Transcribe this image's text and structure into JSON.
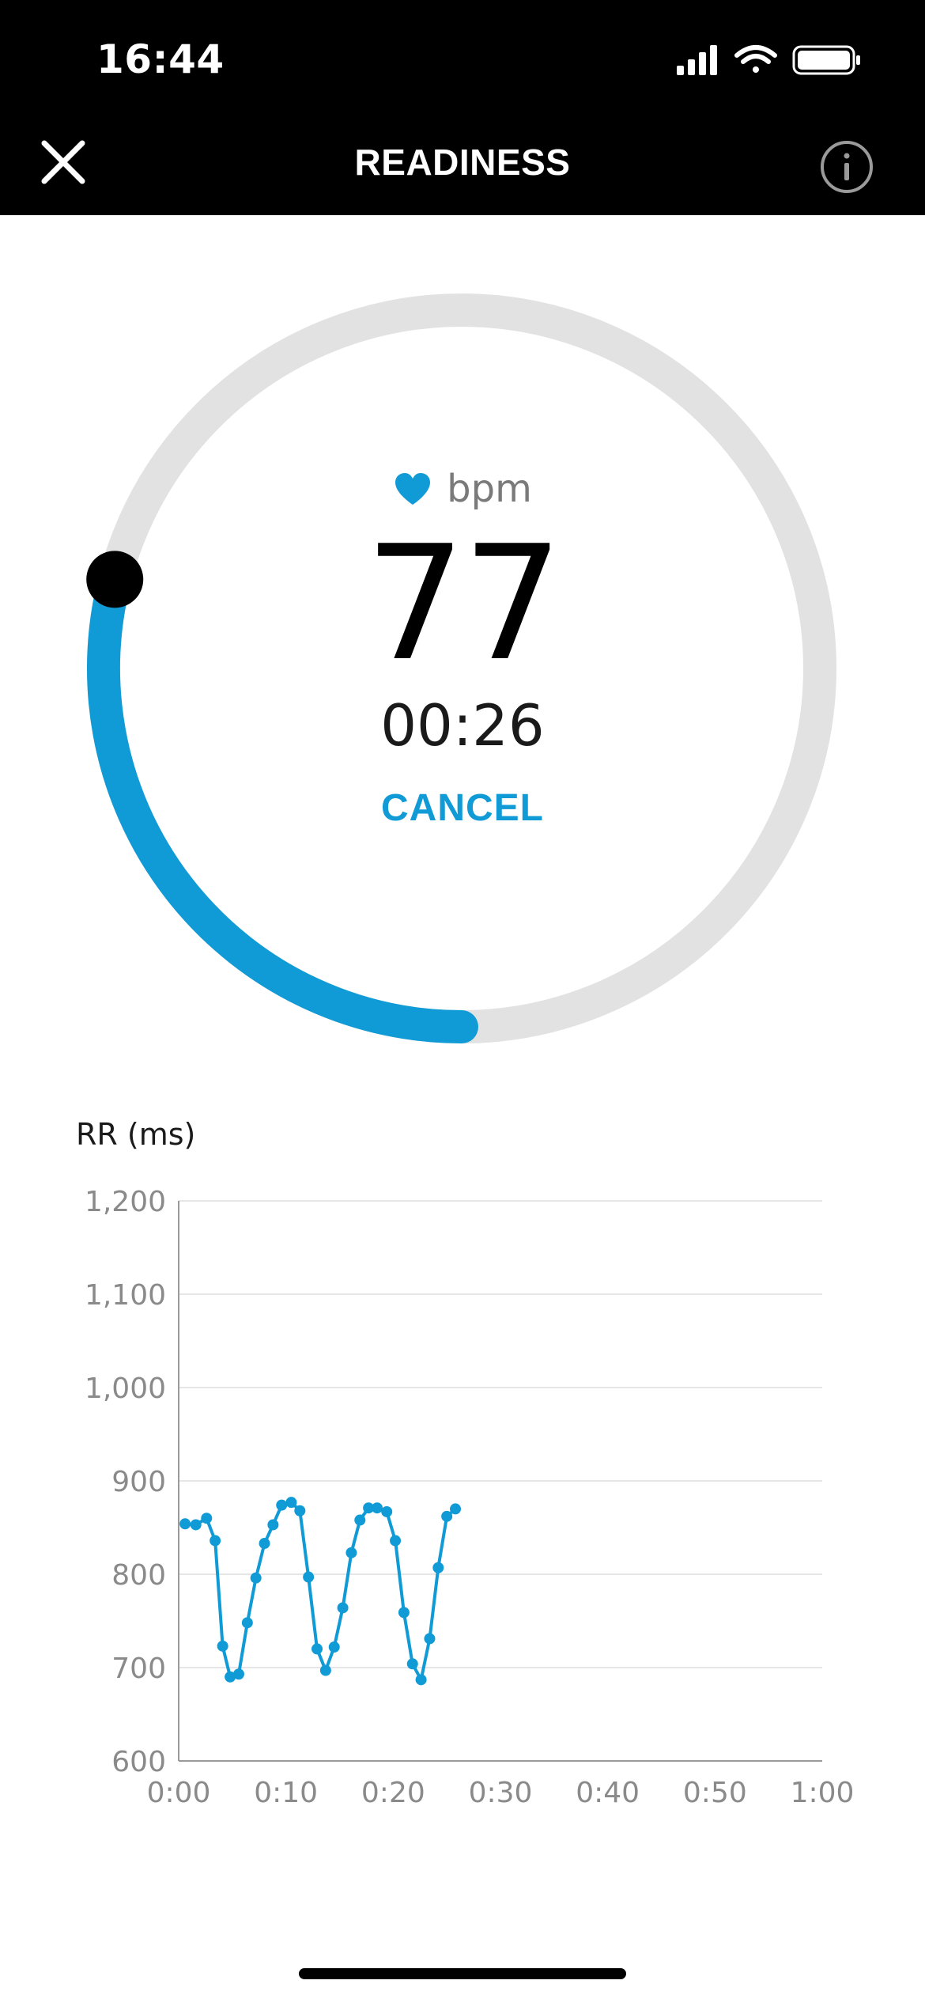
{
  "status_bar": {
    "time": "16:44"
  },
  "nav": {
    "title": "READINESS",
    "close_icon": "close-icon",
    "info_icon": "info-icon"
  },
  "measurement": {
    "unit": "bpm",
    "heart_rate": "77",
    "elapsed": "00:26",
    "cancel_label": "CANCEL",
    "progress_fraction": 0.29
  },
  "colors": {
    "accent": "#109bd6",
    "ring_track": "#e2e2e2",
    "knob": "#000000"
  },
  "chart_data": {
    "type": "line",
    "title": "",
    "ylabel": "RR (ms)",
    "xlabel": "",
    "ylim": [
      600,
      1200
    ],
    "xlim": [
      0,
      60
    ],
    "yticks": [
      600,
      700,
      800,
      900,
      1000,
      1100,
      1200
    ],
    "ytick_labels": [
      "600",
      "700",
      "800",
      "900",
      "1,000",
      "1,100",
      "1,200"
    ],
    "xticks": [
      0,
      10,
      20,
      30,
      40,
      50,
      60
    ],
    "xtick_labels": [
      "0:00",
      "0:10",
      "0:20",
      "0:30",
      "0:40",
      "0:50",
      "1:00"
    ],
    "grid": true,
    "series": [
      {
        "x": [
          0.6,
          1.6,
          2.6,
          3.4,
          4.1,
          4.8,
          5.6,
          6.4,
          7.2,
          8.0,
          8.8,
          9.6,
          10.5,
          11.3,
          12.1,
          12.9,
          13.7,
          14.5,
          15.3,
          16.1,
          16.9,
          17.7,
          18.5,
          19.4,
          20.2,
          21.0,
          21.8,
          22.6,
          23.4,
          24.2,
          25.0,
          25.8
        ],
        "y": [
          854,
          853,
          860,
          836,
          723,
          690,
          693,
          748,
          796,
          833,
          853,
          874,
          877,
          868,
          797,
          720,
          697,
          722,
          764,
          823,
          858,
          871,
          871,
          867,
          836,
          759,
          704,
          687,
          731,
          807,
          862,
          870
        ]
      }
    ]
  }
}
